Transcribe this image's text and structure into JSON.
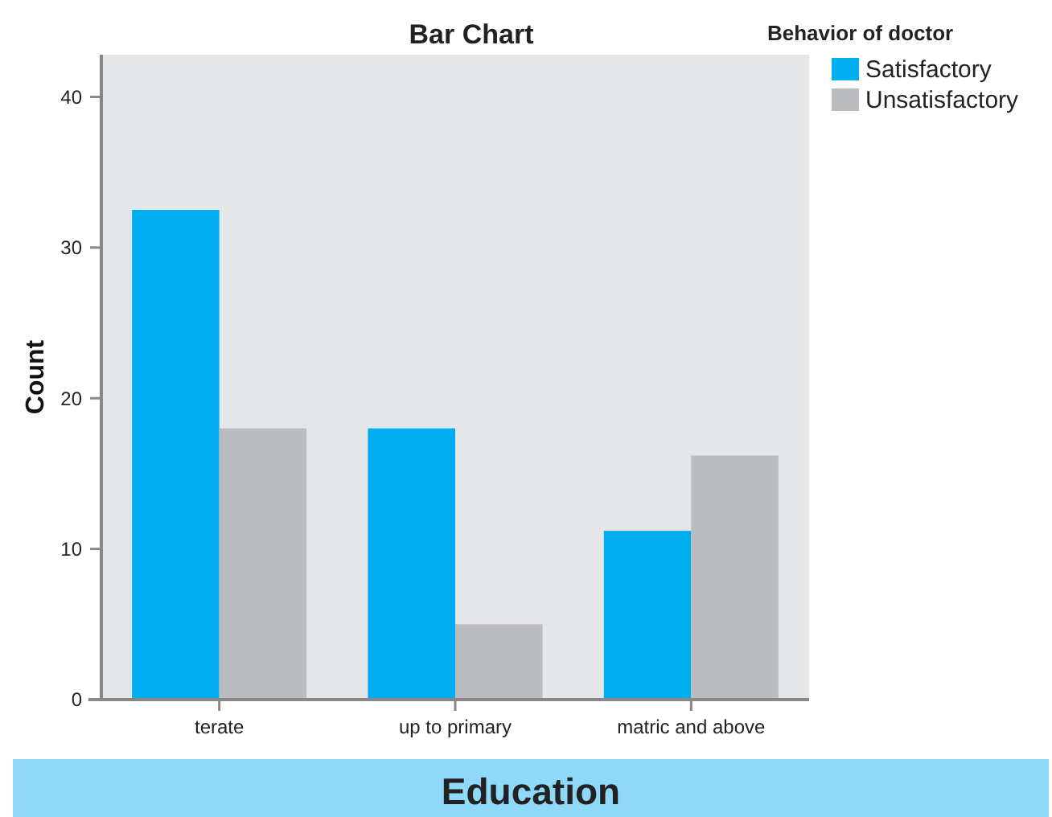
{
  "chart_data": {
    "type": "bar",
    "title": "Bar Chart",
    "xlabel": "Education",
    "ylabel": "Count",
    "legend_title": "Behavior of doctor",
    "categories": [
      "terate",
      "up to primary",
      "matric and above"
    ],
    "series": [
      {
        "name": "Satisfactory",
        "color": "#00aeef",
        "values": [
          32.5,
          18,
          11.2
        ]
      },
      {
        "name": "Unsatisfactory",
        "color": "#bbbcc0",
        "values": [
          18,
          5,
          16.2
        ]
      }
    ],
    "ylim": [
      0,
      42.8
    ],
    "yticks": [
      0,
      10,
      20,
      30,
      40
    ],
    "grid": false,
    "legend": "top right"
  }
}
